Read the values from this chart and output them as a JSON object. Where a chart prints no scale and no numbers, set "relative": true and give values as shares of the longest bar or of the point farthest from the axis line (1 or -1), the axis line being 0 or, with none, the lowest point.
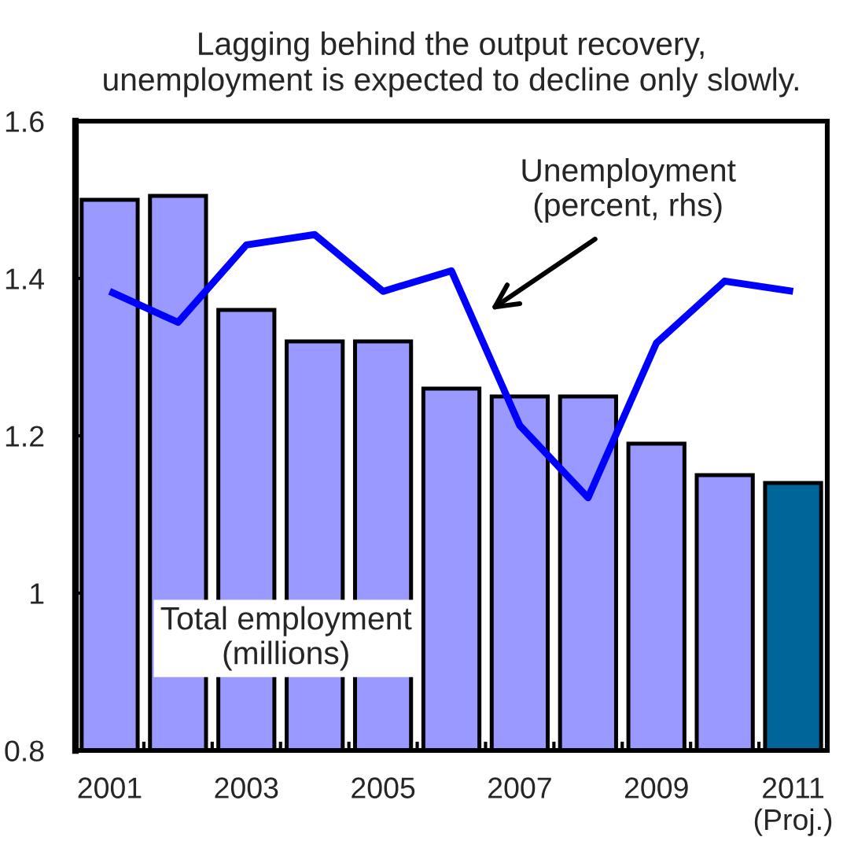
{
  "chart_data": [
    {
      "type": "bar",
      "title": "Lagging behind the output recovery,\nunemployment is expected to decline only slowly.",
      "categories": [
        "2001",
        null,
        "2003",
        null,
        "2005",
        null,
        "2007",
        null,
        "2009",
        null,
        "2011\n(Proj.)"
      ],
      "series": [
        {
          "name": "Total employment\n(millions)",
          "colors": [
            "#9999ff",
            "#9999ff",
            "#9999ff",
            "#9999ff",
            "#9999ff",
            "#9999ff",
            "#9999ff",
            "#9999ff",
            "#9999ff",
            "#9999ff",
            "#006699"
          ],
          "values": [
            1.5,
            1.505,
            1.36,
            1.32,
            1.32,
            1.26,
            1.25,
            1.25,
            1.19,
            1.15,
            1.14
          ]
        }
      ],
      "ylim": [
        0.8,
        1.6
      ],
      "yticks": [
        0.8,
        1,
        1.2,
        1.4,
        1.6
      ]
    },
    {
      "type": "line",
      "relative": true,
      "series": [
        {
          "name": "Unemployment\n(percent, rhs)",
          "color": "#0000ff",
          "values": [
            0.89,
            0.83,
            0.98,
            1,
            0.89,
            0.93,
            0.63,
            0.49,
            0.79,
            0.91,
            0.89
          ]
        }
      ]
    }
  ]
}
